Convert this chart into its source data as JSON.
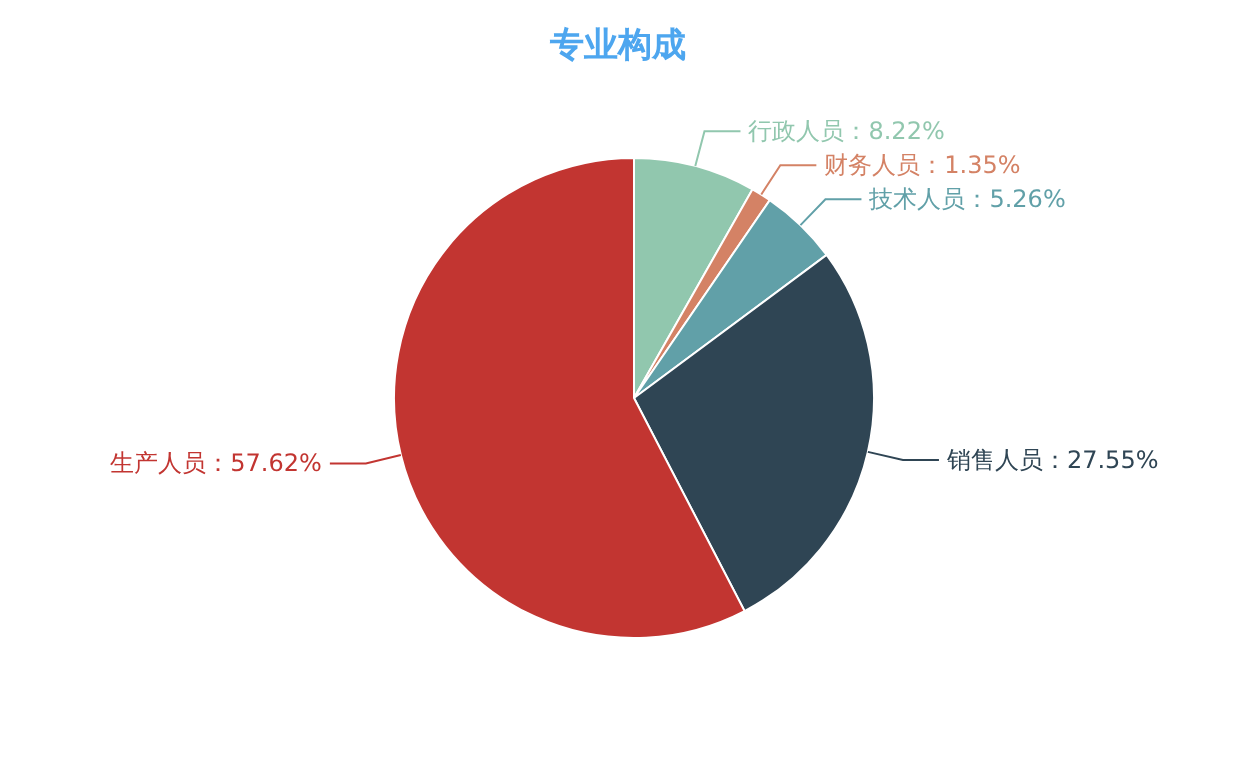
{
  "chart_data": {
    "type": "pie",
    "title": "专业构成",
    "categories": [
      "行政人员",
      "财务人员",
      "技术人员",
      "销售人员",
      "生产人员"
    ],
    "values": [
      8.22,
      1.35,
      5.26,
      27.55,
      57.62
    ],
    "value_labels": [
      "8.22%",
      "1.35%",
      "5.26%",
      "27.55%",
      "57.62%"
    ],
    "colors": [
      "#91c7ae",
      "#d48265",
      "#61a0a8",
      "#2f4554",
      "#c23531"
    ],
    "legend": false
  }
}
